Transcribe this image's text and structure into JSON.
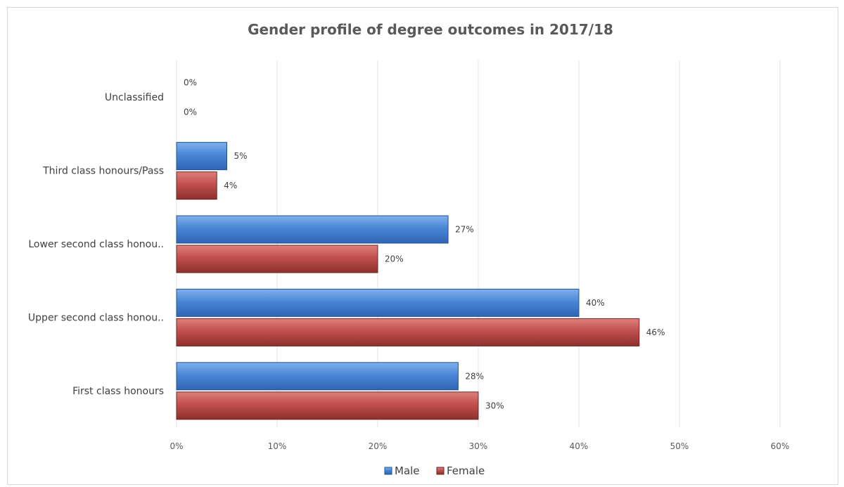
{
  "chart_data": {
    "type": "bar",
    "orientation": "horizontal",
    "title": "Gender profile of degree outcomes in 2017/18",
    "categories": [
      "First class honours",
      "Upper second class honou..",
      "Lower second class honou..",
      "Third class honours/Pass",
      "Unclassified"
    ],
    "series": [
      {
        "name": "Male",
        "values": [
          28,
          40,
          27,
          5,
          0
        ],
        "labels": [
          "28%",
          "40%",
          "27%",
          "5%",
          "0%"
        ],
        "color": "#4a86d6"
      },
      {
        "name": "Female",
        "values": [
          30,
          46,
          20,
          4,
          0
        ],
        "labels": [
          "30%",
          "46%",
          "20%",
          "4%",
          "0%"
        ],
        "color": "#c0504d"
      }
    ],
    "xlim": [
      0,
      60
    ],
    "xticks": [
      0,
      10,
      20,
      30,
      40,
      50,
      60
    ],
    "xtick_labels": [
      "0%",
      "10%",
      "20%",
      "30%",
      "40%",
      "50%",
      "60%"
    ],
    "grid": true,
    "legend_position": "bottom"
  }
}
